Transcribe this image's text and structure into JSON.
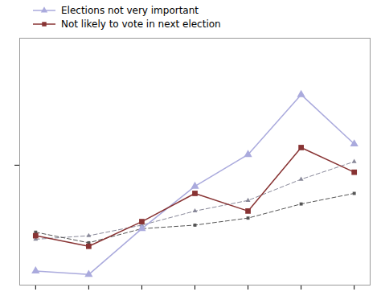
{
  "chart_data": {
    "type": "line",
    "x": [
      1,
      2,
      3,
      4,
      5,
      6,
      7
    ],
    "series": [
      {
        "color": "#888899",
        "values": [
          6.5,
          7.0,
          8.5,
          10.5,
          12.0,
          15.0,
          17.5
        ],
        "line_style": "dashed",
        "marker": "triangle"
      },
      {
        "color": "#555555",
        "values": [
          7.5,
          6.0,
          8.0,
          8.5,
          9.5,
          11.5,
          13.0
        ],
        "line_style": "dashed",
        "marker": "square"
      },
      {
        "name": "Elections not very important",
        "color": "#aaaadd",
        "values": [
          2.0,
          1.5,
          8.0,
          14.0,
          18.5,
          27.0,
          20.0
        ],
        "line_style": "solid",
        "marker": "triangle"
      },
      {
        "name": "Not likely to vote in next election",
        "color": "#883333",
        "values": [
          7.0,
          5.5,
          9.0,
          13.0,
          10.5,
          19.5,
          16.0
        ],
        "line_style": "solid",
        "marker": "square"
      }
    ],
    "xlim": [
      0.7,
      7.3
    ],
    "ylim": [
      0,
      35
    ],
    "xticks": [
      1,
      2,
      3,
      4,
      5,
      6,
      7
    ],
    "yticks": [
      17
    ],
    "tick_labels": false,
    "grid": false,
    "legend": "upper left"
  }
}
